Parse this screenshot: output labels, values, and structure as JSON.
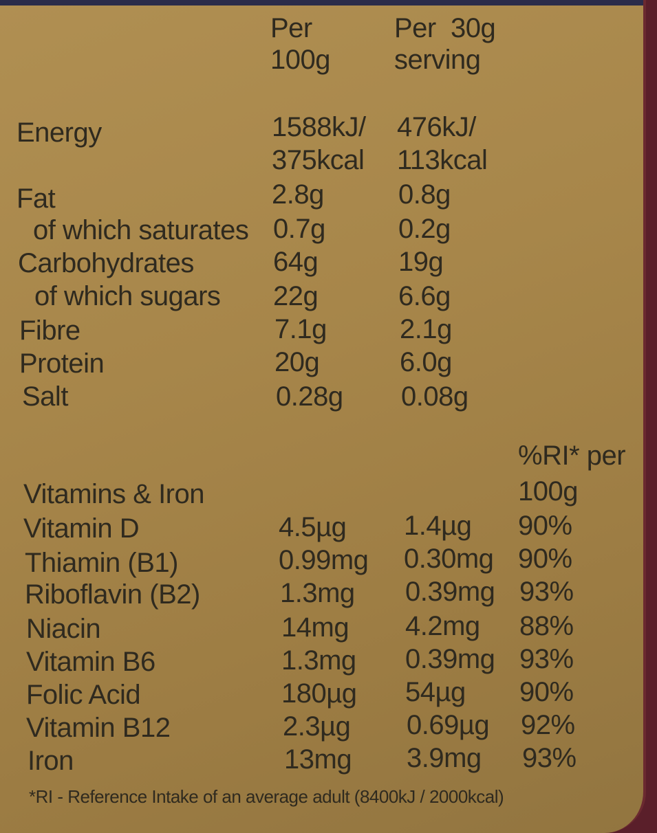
{
  "header": {
    "per100_line1": "Per",
    "per100_line2": "100g",
    "perserv_line1": "Per  30g",
    "perserv_line2": "serving"
  },
  "nutrients": [
    {
      "name": "Energy",
      "per100": "1588kJ/",
      "per100b": "375kcal",
      "serving": "476kJ/",
      "servingb": "113kcal"
    },
    {
      "name": "Fat",
      "per100": "2.8g",
      "serving": "0.8g"
    },
    {
      "name": "of which saturates",
      "per100": "0.7g",
      "serving": "0.2g"
    },
    {
      "name": "Carbohydrates",
      "per100": "64g",
      "serving": "19g"
    },
    {
      "name": "of which sugars",
      "per100": "22g",
      "serving": "6.6g"
    },
    {
      "name": "Fibre",
      "per100": "7.1g",
      "serving": "2.1g"
    },
    {
      "name": "Protein",
      "per100": "20g",
      "serving": "6.0g"
    },
    {
      "name": "Salt",
      "per100": "0.28g",
      "serving": "0.08g"
    }
  ],
  "vitamins_header": {
    "title": "Vitamins & Iron",
    "ri_line1": "%RI* per",
    "ri_line2": "100g"
  },
  "vitamins": [
    {
      "name": "Vitamin D",
      "per100": "4.5µg",
      "serving": "1.4µg",
      "ri": "90%"
    },
    {
      "name": "Thiamin (B1)",
      "per100": "0.99mg",
      "serving": "0.30mg",
      "ri": "90%"
    },
    {
      "name": "Riboflavin (B2)",
      "per100": "1.3mg",
      "serving": "0.39mg",
      "ri": "93%"
    },
    {
      "name": "Niacin",
      "per100": "14mg",
      "serving": "4.2mg",
      "ri": "88%"
    },
    {
      "name": "Vitamin B6",
      "per100": "1.3mg",
      "serving": "0.39mg",
      "ri": "93%"
    },
    {
      "name": "Folic Acid",
      "per100": "180µg",
      "serving": "54µg",
      "ri": "90%"
    },
    {
      "name": "Vitamin B12",
      "per100": "2.3µg",
      "serving": "0.69µg",
      "ri": "92%"
    },
    {
      "name": "Iron",
      "per100": "13mg",
      "serving": "3.9mg",
      "ri": "93%"
    }
  ],
  "footnote": "*RI - Reference Intake of an average adult (8400kJ / 2000kcal)"
}
